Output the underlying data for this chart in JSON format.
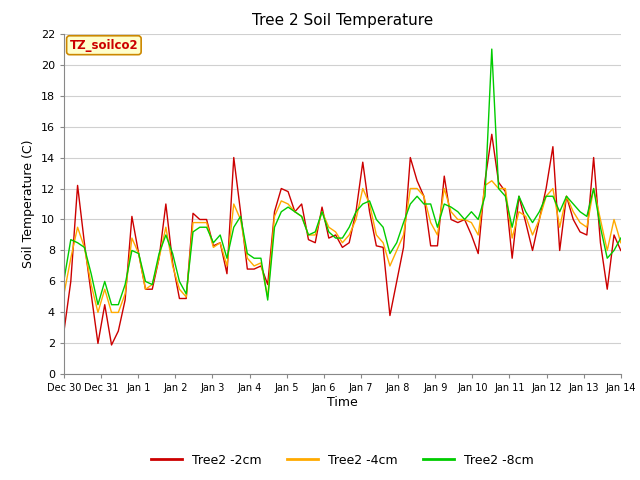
{
  "title": "Tree 2 Soil Temperature",
  "xlabel": "Time",
  "ylabel": "Soil Temperature (C)",
  "annotation": "TZ_soilco2",
  "ylim": [
    0,
    22
  ],
  "xlim": [
    0,
    15
  ],
  "x_ticks": [
    0,
    1,
    2,
    3,
    4,
    5,
    6,
    7,
    8,
    9,
    10,
    11,
    12,
    13,
    14,
    15
  ],
  "x_tick_labels": [
    "Dec 30",
    "Dec 31",
    "Jan 1",
    "Jan 2",
    "Jan 3",
    "Jan 4",
    "Jan 5",
    "Jan 6",
    "Jan 7",
    "Jan 8",
    "Jan 9",
    "Jan 10",
    "Jan 11",
    "Jan 12",
    "Jan 13",
    "Jan 14"
  ],
  "y_ticks": [
    0,
    2,
    4,
    6,
    8,
    10,
    12,
    14,
    16,
    18,
    20,
    22
  ],
  "color_2cm": "#cc0000",
  "color_4cm": "#ffaa00",
  "color_8cm": "#00cc00",
  "line_width": 1.0,
  "legend_labels": [
    "Tree2 -2cm",
    "Tree2 -4cm",
    "Tree2 -8cm"
  ],
  "annotation_facecolor": "#ffffcc",
  "annotation_edgecolor": "#cc8800",
  "annotation_textcolor": "#cc0000",
  "t2cm": [
    2.8,
    6.0,
    12.2,
    8.5,
    5.2,
    2.0,
    4.5,
    1.9,
    2.8,
    4.8,
    10.2,
    7.8,
    5.5,
    5.5,
    7.5,
    11.0,
    7.2,
    4.9,
    4.9,
    10.4,
    10.0,
    10.0,
    8.3,
    8.5,
    6.5,
    14.0,
    10.5,
    6.8,
    6.8,
    7.0,
    5.8,
    10.5,
    12.0,
    11.8,
    10.5,
    11.0,
    8.7,
    8.5,
    10.8,
    8.8,
    9.0,
    8.2,
    8.5,
    10.5,
    13.7,
    10.5,
    8.3,
    8.2,
    3.8,
    6.0,
    8.2,
    14.0,
    12.5,
    11.5,
    8.3,
    8.3,
    12.8,
    10.0,
    9.8,
    10.0,
    9.0,
    7.8,
    12.5,
    15.5,
    12.4,
    11.8,
    7.5,
    11.5,
    9.8,
    8.0,
    10.0,
    12.0,
    14.7,
    8.0,
    11.5,
    10.0,
    9.2,
    9.0,
    14.0,
    8.5,
    5.5,
    9.0,
    8.0
  ],
  "t4cm": [
    5.2,
    7.5,
    9.5,
    8.2,
    5.8,
    4.0,
    5.5,
    4.0,
    4.0,
    5.2,
    8.8,
    7.8,
    5.5,
    5.8,
    7.5,
    9.5,
    7.0,
    5.5,
    5.0,
    9.8,
    9.8,
    9.8,
    8.2,
    8.5,
    7.0,
    11.0,
    10.0,
    7.5,
    7.0,
    7.2,
    5.0,
    10.2,
    11.2,
    11.0,
    10.5,
    10.2,
    9.0,
    9.0,
    10.5,
    9.5,
    9.2,
    8.5,
    9.0,
    10.0,
    12.0,
    11.0,
    9.0,
    8.5,
    7.0,
    8.0,
    9.0,
    12.0,
    12.0,
    11.5,
    9.8,
    9.0,
    12.0,
    10.5,
    10.0,
    10.0,
    9.8,
    9.0,
    12.2,
    12.5,
    12.0,
    12.0,
    8.8,
    10.5,
    10.2,
    9.0,
    10.0,
    11.5,
    12.0,
    9.5,
    11.5,
    10.5,
    9.8,
    9.5,
    12.0,
    10.0,
    8.0,
    10.0,
    8.5
  ],
  "t8cm": [
    6.1,
    8.7,
    8.5,
    8.2,
    6.5,
    4.5,
    6.0,
    4.5,
    4.5,
    5.8,
    8.0,
    7.8,
    6.0,
    5.8,
    7.8,
    9.0,
    7.8,
    6.0,
    5.2,
    9.2,
    9.5,
    9.5,
    8.5,
    9.0,
    7.5,
    9.5,
    10.2,
    7.8,
    7.5,
    7.5,
    4.8,
    9.5,
    10.5,
    10.8,
    10.5,
    10.2,
    9.0,
    9.2,
    10.5,
    9.2,
    8.8,
    8.8,
    9.5,
    10.5,
    11.0,
    11.2,
    10.0,
    9.5,
    7.8,
    8.5,
    9.8,
    11.0,
    11.5,
    11.0,
    11.0,
    9.5,
    11.0,
    10.8,
    10.5,
    10.0,
    10.5,
    10.0,
    11.5,
    21.0,
    12.0,
    11.5,
    9.5,
    11.5,
    10.5,
    9.8,
    10.5,
    11.5,
    11.5,
    10.5,
    11.5,
    11.0,
    10.5,
    10.2,
    12.0,
    9.5,
    7.5,
    8.0,
    8.8
  ]
}
